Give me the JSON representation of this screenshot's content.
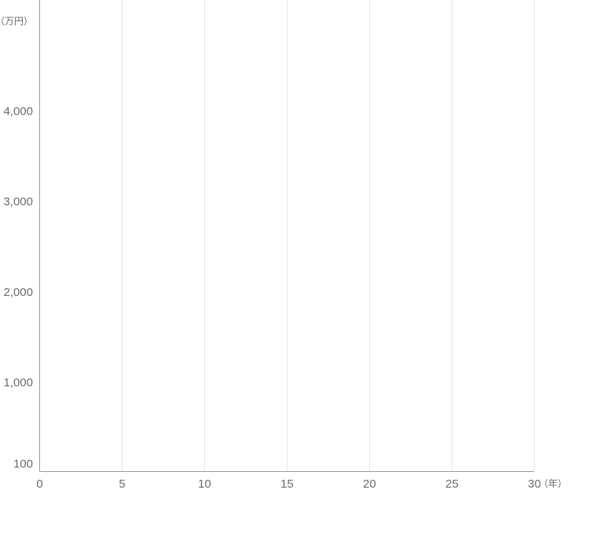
{
  "chart_data": {
    "type": "line",
    "title": "",
    "xlabel": "",
    "ylabel": "",
    "x_unit": "（年）",
    "y_unit": "（万円）",
    "xlim": [
      0,
      30
    ],
    "ylim": [
      0,
      5230
    ],
    "x_ticks": [
      0,
      5,
      10,
      15,
      20,
      25,
      30
    ],
    "x_tick_labels": [
      "0",
      "5",
      "10",
      "15",
      "20",
      "25",
      "30"
    ],
    "y_ticks": [
      100,
      1000,
      2000,
      3000,
      4000
    ],
    "y_tick_labels": [
      "100",
      "1,000",
      "2,000",
      "3,000",
      "4,000"
    ],
    "grid": "vertical",
    "series": [],
    "colors": {
      "axis": "#9a9a9a",
      "grid": "#e6e6e6",
      "text": "#6b6b6b"
    }
  }
}
